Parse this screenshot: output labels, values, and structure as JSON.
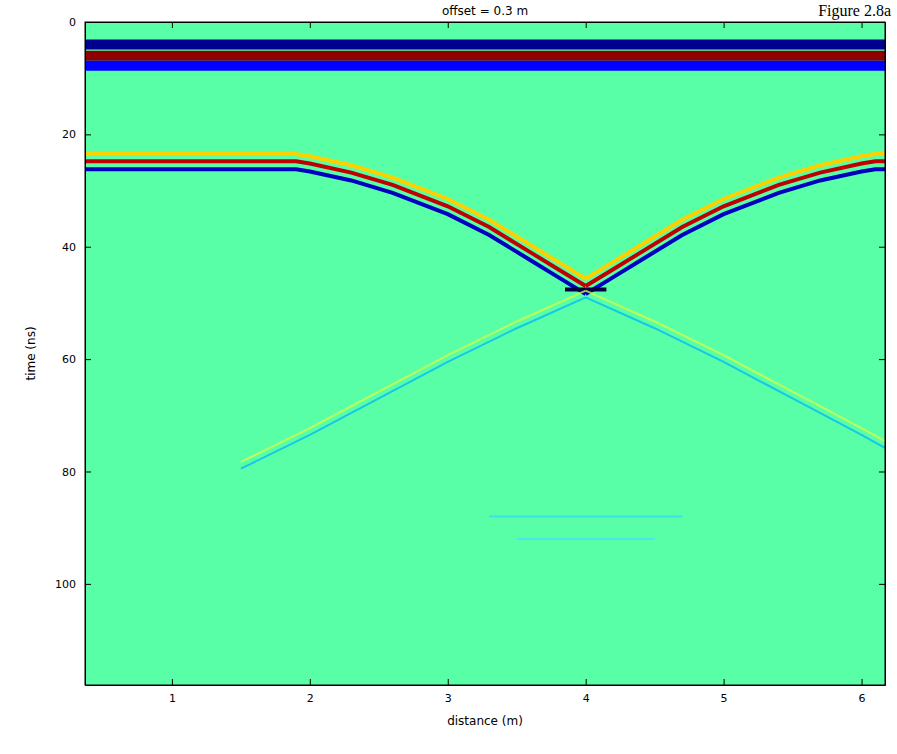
{
  "chart_data": {
    "type": "line",
    "title": "offset = 0.3 m",
    "annotations": [
      "Figure 2.8a"
    ],
    "x_label": "distance (m)",
    "y_label": "time (ns)",
    "xlim": [
      0.37,
      6.17
    ],
    "ylim": [
      118,
      0
    ],
    "xticks": [
      1,
      2,
      3,
      4,
      5,
      6
    ],
    "yticks": [
      0,
      20,
      40,
      60,
      80,
      100
    ],
    "series": [
      {
        "color": "#00008f",
        "line_style": "band",
        "x": [
          0.37,
          6.17
        ],
        "values": [
          4,
          4
        ]
      },
      {
        "color": "#8f0000",
        "line_style": "band",
        "x": [
          0.37,
          6.17
        ],
        "values": [
          6,
          6
        ]
      },
      {
        "color": "#0000ff",
        "line_style": "band",
        "x": [
          0.37,
          6.17
        ],
        "values": [
          7.8,
          7.8
        ]
      },
      {
        "color": "#ffd000",
        "line_style": "solid",
        "x": [
          0.37,
          1.9,
          2.0,
          2.3,
          2.6,
          3.0,
          3.3,
          3.6,
          3.8,
          4.0
        ],
        "values": [
          23.5,
          23.5,
          23.9,
          25.5,
          27.7,
          31.5,
          35.2,
          39.7,
          42.7,
          45.7
        ]
      },
      {
        "color": "#ffd000",
        "line_style": "solid",
        "x": [
          4.0,
          4.2,
          4.4,
          4.7,
          5.0,
          5.4,
          5.7,
          6.0,
          6.1,
          6.17
        ],
        "values": [
          45.7,
          42.7,
          39.7,
          35.2,
          31.5,
          27.7,
          25.5,
          23.9,
          23.5,
          23.5
        ]
      },
      {
        "color": "#c00000",
        "line_style": "solid",
        "x": [
          0.37,
          1.9,
          2.0,
          2.3,
          2.6,
          3.0,
          3.3,
          3.6,
          3.8,
          4.0
        ],
        "values": [
          24.8,
          24.8,
          25.2,
          26.8,
          29,
          32.8,
          36.5,
          41,
          44,
          47
        ]
      },
      {
        "color": "#c00000",
        "line_style": "solid",
        "x": [
          4.0,
          4.2,
          4.4,
          4.7,
          5.0,
          5.4,
          5.7,
          6.0,
          6.1,
          6.17
        ],
        "values": [
          47,
          44,
          41,
          36.5,
          32.8,
          29,
          26.8,
          25.2,
          24.8,
          24.8
        ]
      },
      {
        "color": "#0000c0",
        "line_style": "solid",
        "x": [
          0.37,
          1.9,
          2.0,
          2.3,
          2.6,
          3.0,
          3.3,
          3.6,
          3.8,
          4.0
        ],
        "values": [
          26.2,
          26.2,
          26.6,
          28.2,
          30.4,
          34.2,
          37.9,
          42.4,
          45.4,
          48.4
        ]
      },
      {
        "color": "#0000c0",
        "line_style": "solid",
        "x": [
          4.0,
          4.2,
          4.4,
          4.7,
          5.0,
          5.4,
          5.7,
          6.0,
          6.1,
          6.17
        ],
        "values": [
          48.4,
          45.4,
          42.4,
          37.9,
          34.2,
          30.4,
          28.2,
          26.6,
          26.2,
          26.2
        ]
      },
      {
        "color": "#000040",
        "line_style": "solid",
        "x": [
          3.85,
          4.15
        ],
        "values": [
          47.6,
          47.6
        ]
      },
      {
        "color": "#00b4ff",
        "line_style": "faint",
        "x": [
          4.0,
          3.5,
          3.0,
          2.5,
          2.0,
          1.5
        ],
        "values": [
          49,
          54.5,
          60.5,
          67,
          73.5,
          79.5
        ]
      },
      {
        "color": "#00b4ff",
        "line_style": "faint",
        "x": [
          4.0,
          4.5,
          5.0,
          5.5,
          6.0,
          6.17
        ],
        "values": [
          49,
          54.5,
          60.5,
          67,
          73.5,
          75.8
        ]
      },
      {
        "color": "#e0ff40",
        "line_style": "faint",
        "x": [
          4.0,
          3.5,
          3.0,
          2.5,
          2.0,
          1.5
        ],
        "values": [
          47.8,
          53.3,
          59.3,
          65.8,
          72.3,
          78.3
        ]
      },
      {
        "color": "#e0ff40",
        "line_style": "faint",
        "x": [
          4.0,
          4.5,
          5.0,
          5.5,
          6.0,
          6.17
        ],
        "values": [
          47.8,
          53.3,
          59.3,
          65.8,
          72.3,
          74.6
        ]
      },
      {
        "color": "#30d8ff",
        "line_style": "faint",
        "x": [
          3.3,
          4.7
        ],
        "values": [
          88,
          88
        ]
      },
      {
        "color": "#40e0ff",
        "line_style": "faint",
        "x": [
          3.5,
          4.5
        ],
        "values": [
          92,
          92
        ]
      }
    ]
  }
}
